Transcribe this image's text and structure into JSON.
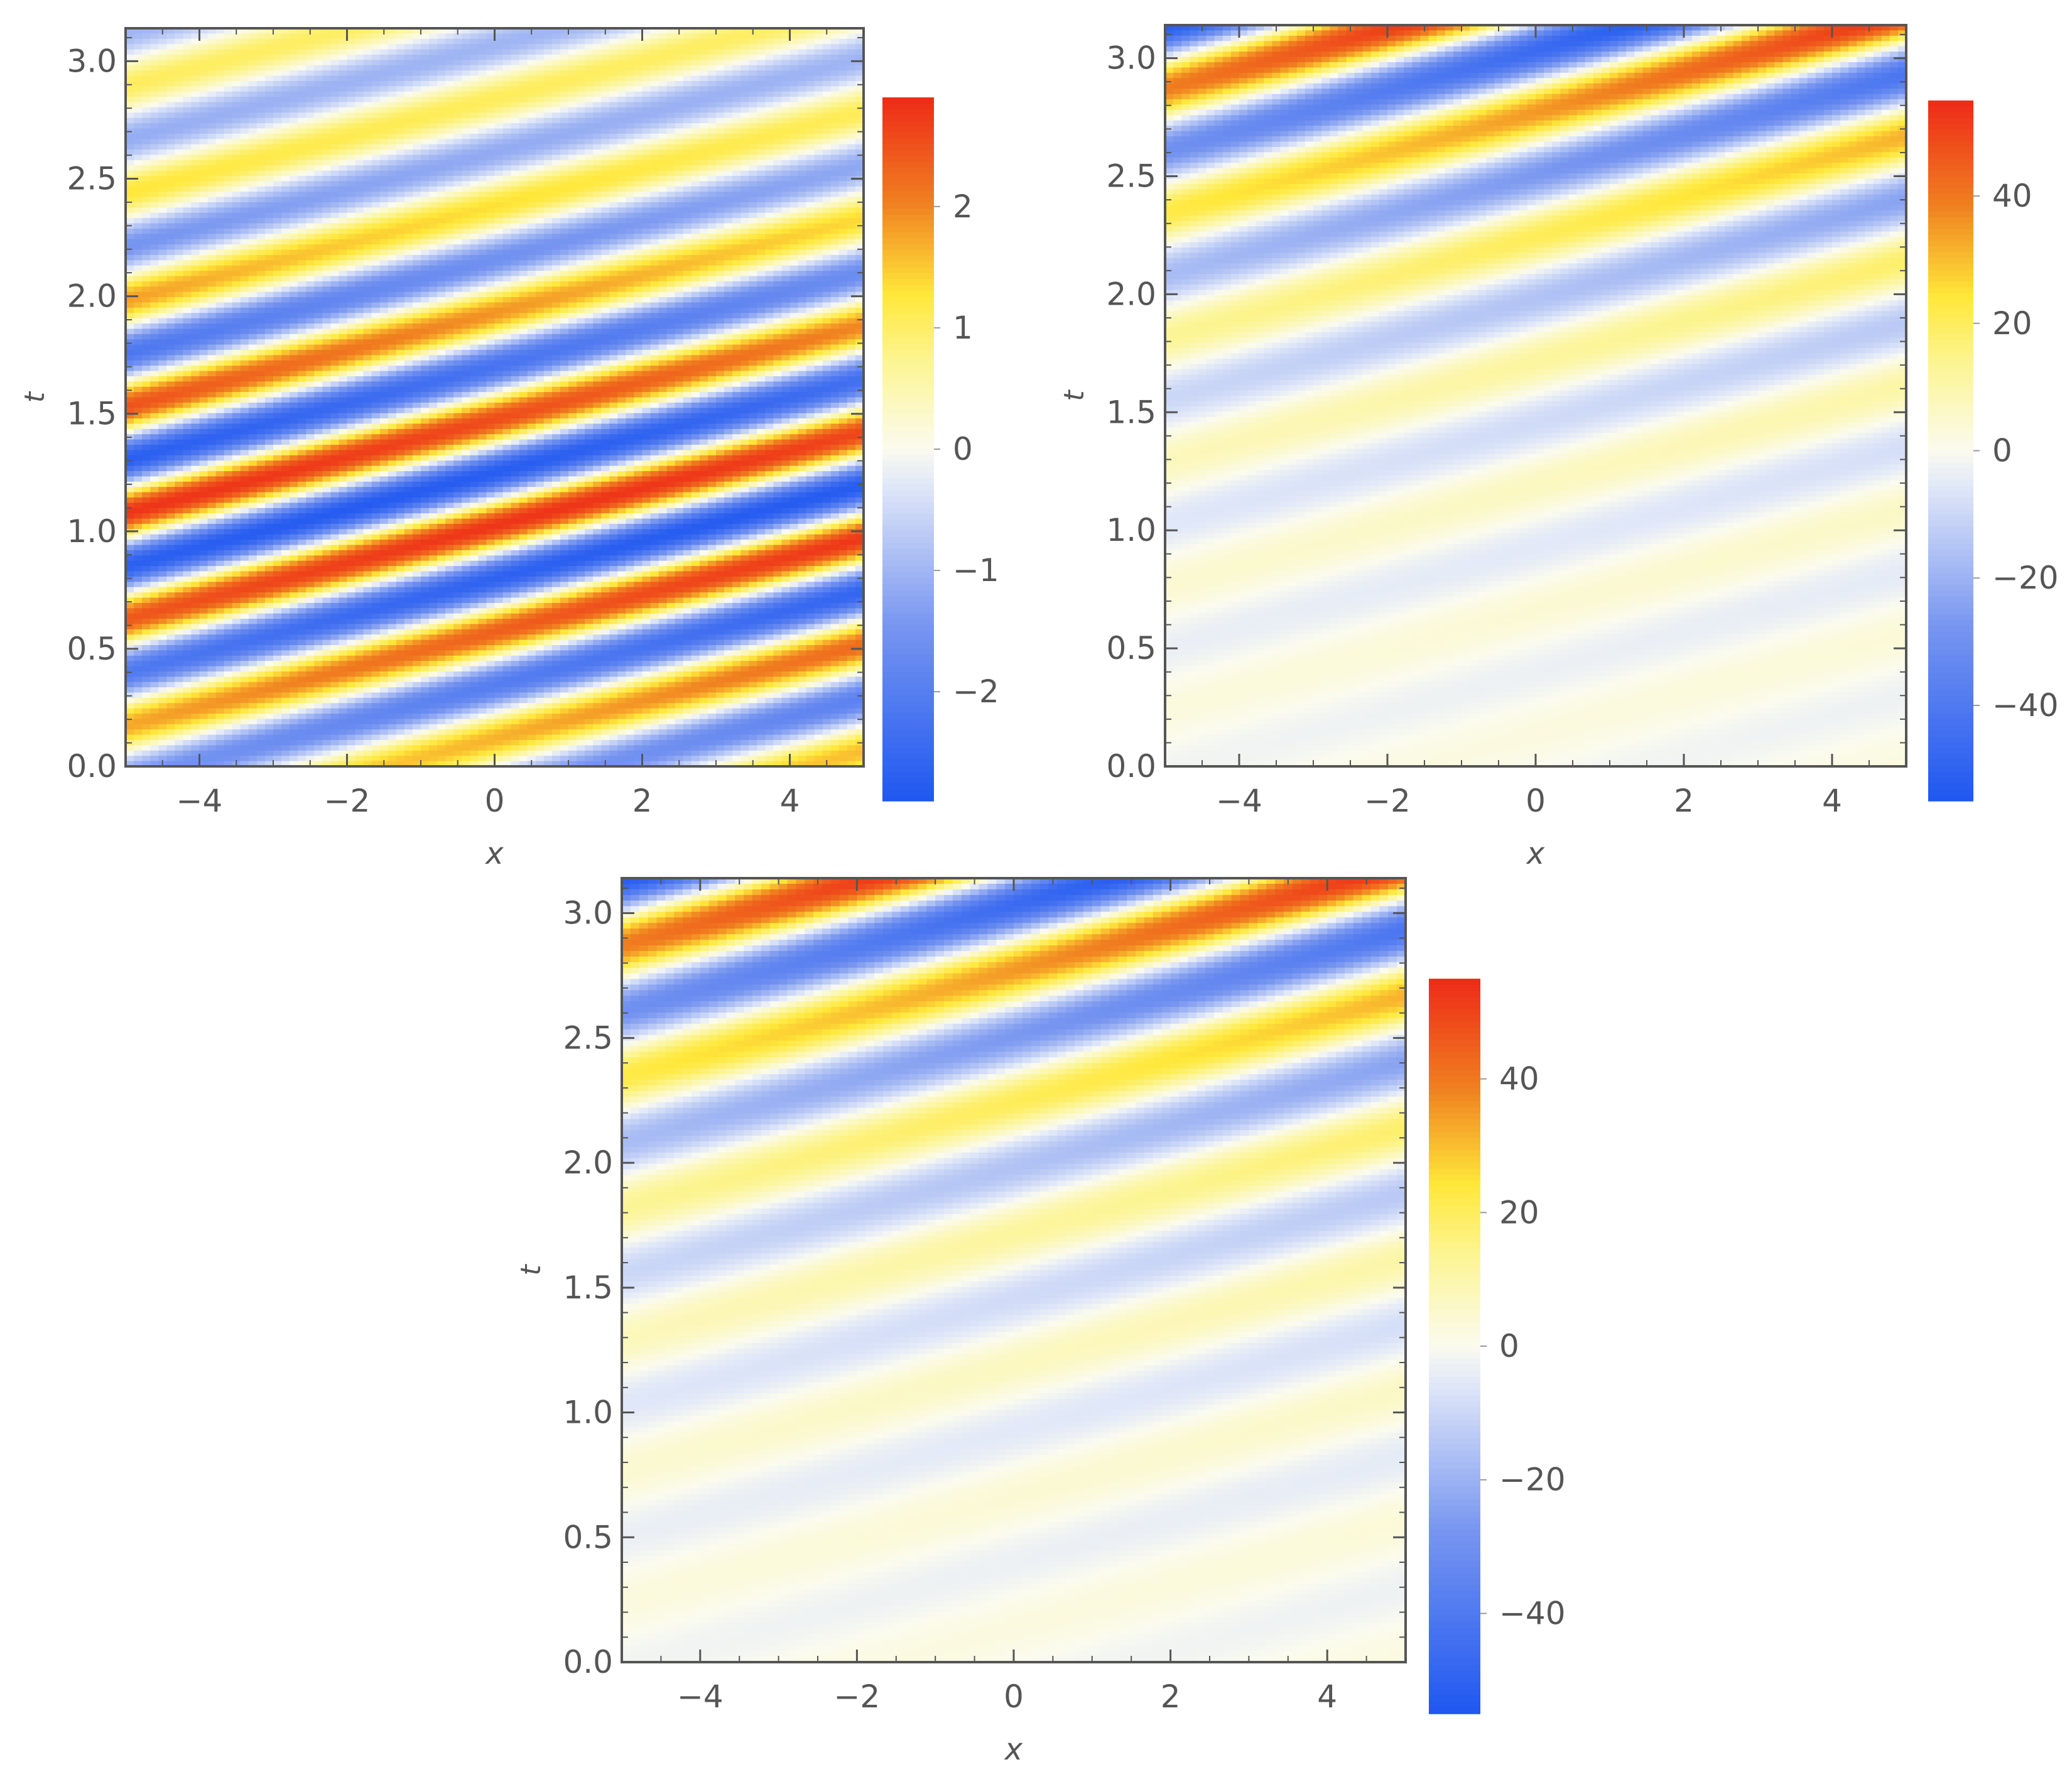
{
  "chart_data": [
    {
      "type": "heatmap",
      "xlabel": "x",
      "ylabel": "t",
      "xlim": [
        -5,
        5
      ],
      "ylim": [
        0,
        3.14
      ],
      "xticks": [
        "−4",
        "−2",
        "0",
        "2",
        "4"
      ],
      "xtick_values": [
        -4,
        -2,
        0,
        2,
        4
      ],
      "yticks": [
        "0.0",
        "0.5",
        "1.0",
        "1.5",
        "2.0",
        "2.5",
        "3.0"
      ],
      "ytick_values": [
        0,
        0.5,
        1,
        1.5,
        2,
        2.5,
        3
      ],
      "colorbar": {
        "min": -2.9,
        "max": 2.9,
        "tick_values": [
          -2,
          -1,
          0,
          1,
          2
        ],
        "tick_labels": [
          "−2",
          "−1",
          "0",
          "1",
          "2"
        ]
      },
      "field": {
        "description_type": "traveling_wave",
        "amplitude_at_t0": 2.8,
        "growth_rate": 0,
        "envelope": "standing",
        "bands_per_unit_t": 2.2,
        "slope_dt_dx": 0.08
      }
    },
    {
      "type": "heatmap",
      "xlabel": "x",
      "ylabel": "t",
      "xlim": [
        -5,
        5
      ],
      "ylim": [
        0,
        3.14
      ],
      "xticks": [
        "−4",
        "−2",
        "0",
        "2",
        "4"
      ],
      "xtick_values": [
        -4,
        -2,
        0,
        2,
        4
      ],
      "yticks": [
        "0.0",
        "0.5",
        "1.0",
        "1.5",
        "2.0",
        "2.5",
        "3.0"
      ],
      "ytick_values": [
        0,
        0.5,
        1,
        1.5,
        2,
        2.5,
        3
      ],
      "colorbar": {
        "min": -55,
        "max": 55,
        "tick_values": [
          -40,
          -20,
          0,
          20,
          40
        ],
        "tick_labels": [
          "−40",
          "−20",
          "0",
          "20",
          "40"
        ]
      },
      "field": {
        "description_type": "growing_wave",
        "amplitude_at_t0": 2,
        "amplitude_at_tmax": 52,
        "envelope": "exponential",
        "bands_per_unit_t": 1.9,
        "slope_dt_dx": 0.085
      }
    },
    {
      "type": "heatmap",
      "xlabel": "x",
      "ylabel": "t",
      "xlim": [
        -5,
        5
      ],
      "ylim": [
        0,
        3.14
      ],
      "xticks": [
        "−4",
        "−2",
        "0",
        "2",
        "4"
      ],
      "xtick_values": [
        -4,
        -2,
        0,
        2,
        4
      ],
      "yticks": [
        "0.0",
        "0.5",
        "1.0",
        "1.5",
        "2.0",
        "2.5",
        "3.0"
      ],
      "ytick_values": [
        0,
        0.5,
        1,
        1.5,
        2,
        2.5,
        3
      ],
      "colorbar": {
        "min": -55,
        "max": 55,
        "tick_values": [
          -40,
          -20,
          0,
          20,
          40
        ],
        "tick_labels": [
          "−40",
          "−20",
          "0",
          "20",
          "40"
        ]
      },
      "field": {
        "description_type": "growing_wave",
        "amplitude_at_t0": 2,
        "amplitude_at_tmax": 52,
        "envelope": "exponential",
        "bands_per_unit_t": 1.9,
        "slope_dt_dx": 0.085
      }
    }
  ],
  "colors": {
    "negative": "#1f57f0",
    "zero": "#fbfbef",
    "positive_mid": "#ffe83a",
    "positive_high": "#f08020",
    "positive_max": "#ee2a18",
    "frame": "#555555",
    "tick_text": "#555555"
  }
}
